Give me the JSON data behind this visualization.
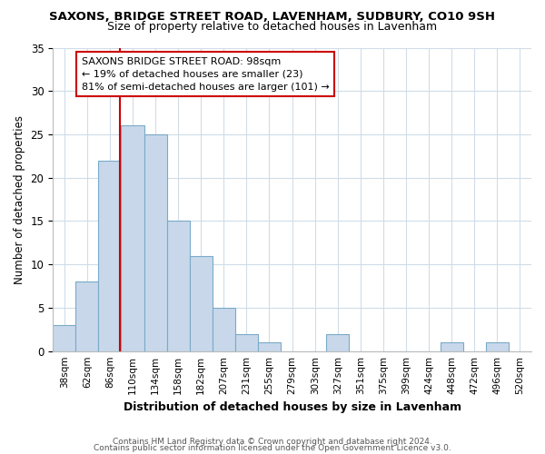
{
  "title1": "SAXONS, BRIDGE STREET ROAD, LAVENHAM, SUDBURY, CO10 9SH",
  "title2": "Size of property relative to detached houses in Lavenham",
  "xlabel": "Distribution of detached houses by size in Lavenham",
  "ylabel": "Number of detached properties",
  "bar_labels": [
    "38sqm",
    "62sqm",
    "86sqm",
    "110sqm",
    "134sqm",
    "158sqm",
    "182sqm",
    "207sqm",
    "231sqm",
    "255sqm",
    "279sqm",
    "303sqm",
    "327sqm",
    "351sqm",
    "375sqm",
    "399sqm",
    "424sqm",
    "448sqm",
    "472sqm",
    "496sqm",
    "520sqm"
  ],
  "bar_values": [
    3,
    8,
    22,
    26,
    25,
    15,
    11,
    5,
    2,
    1,
    0,
    0,
    2,
    0,
    0,
    0,
    0,
    1,
    0,
    1,
    0
  ],
  "bar_color": "#c8d8ea",
  "bar_edge_color": "#7aaac8",
  "vline_color": "#cc0000",
  "vline_x": 2.425,
  "ylim": [
    0,
    35
  ],
  "yticks": [
    0,
    5,
    10,
    15,
    20,
    25,
    30,
    35
  ],
  "annotation_title": "SAXONS BRIDGE STREET ROAD: 98sqm",
  "annotation_line1": "← 19% of detached houses are smaller (23)",
  "annotation_line2": "81% of semi-detached houses are larger (101) →",
  "footer1": "Contains HM Land Registry data © Crown copyright and database right 2024.",
  "footer2": "Contains public sector information licensed under the Open Government Licence v3.0.",
  "background_color": "#ffffff",
  "grid_color": "#d0dce8"
}
